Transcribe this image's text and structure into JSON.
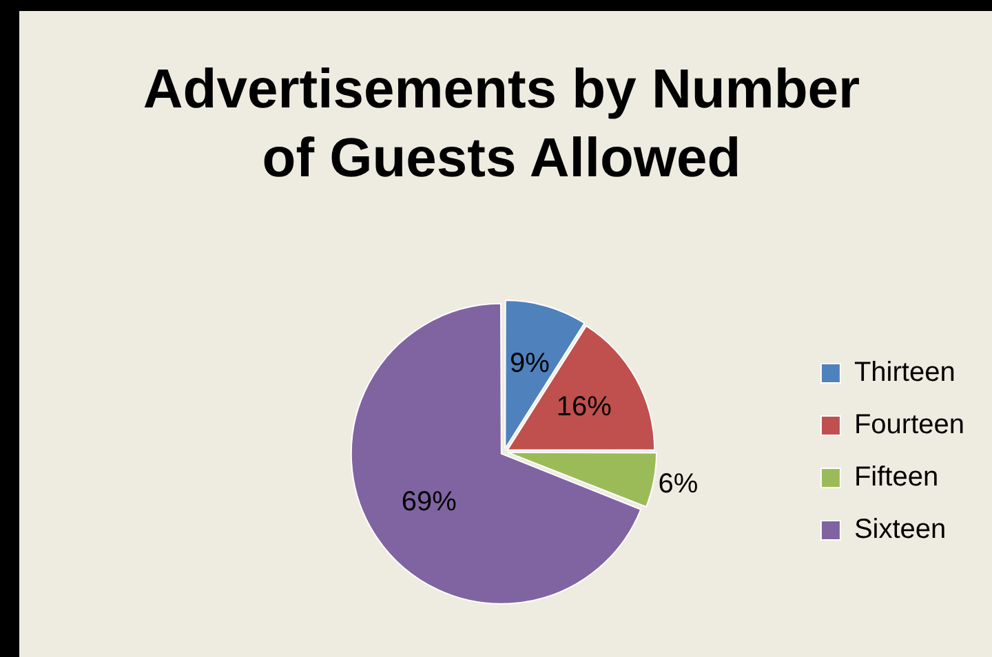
{
  "chart_data": {
    "type": "pie",
    "title": "Advertisements by Number of Guests Allowed",
    "categories": [
      "Thirteen",
      "Fourteen",
      "Fifteen",
      "Sixteen"
    ],
    "values": [
      9,
      16,
      6,
      69
    ],
    "value_labels": [
      "9%",
      "16%",
      "6%",
      "69%"
    ],
    "colors": [
      "#4f81bd",
      "#c0504d",
      "#9bbb59",
      "#8064a2"
    ],
    "legend": "right"
  }
}
